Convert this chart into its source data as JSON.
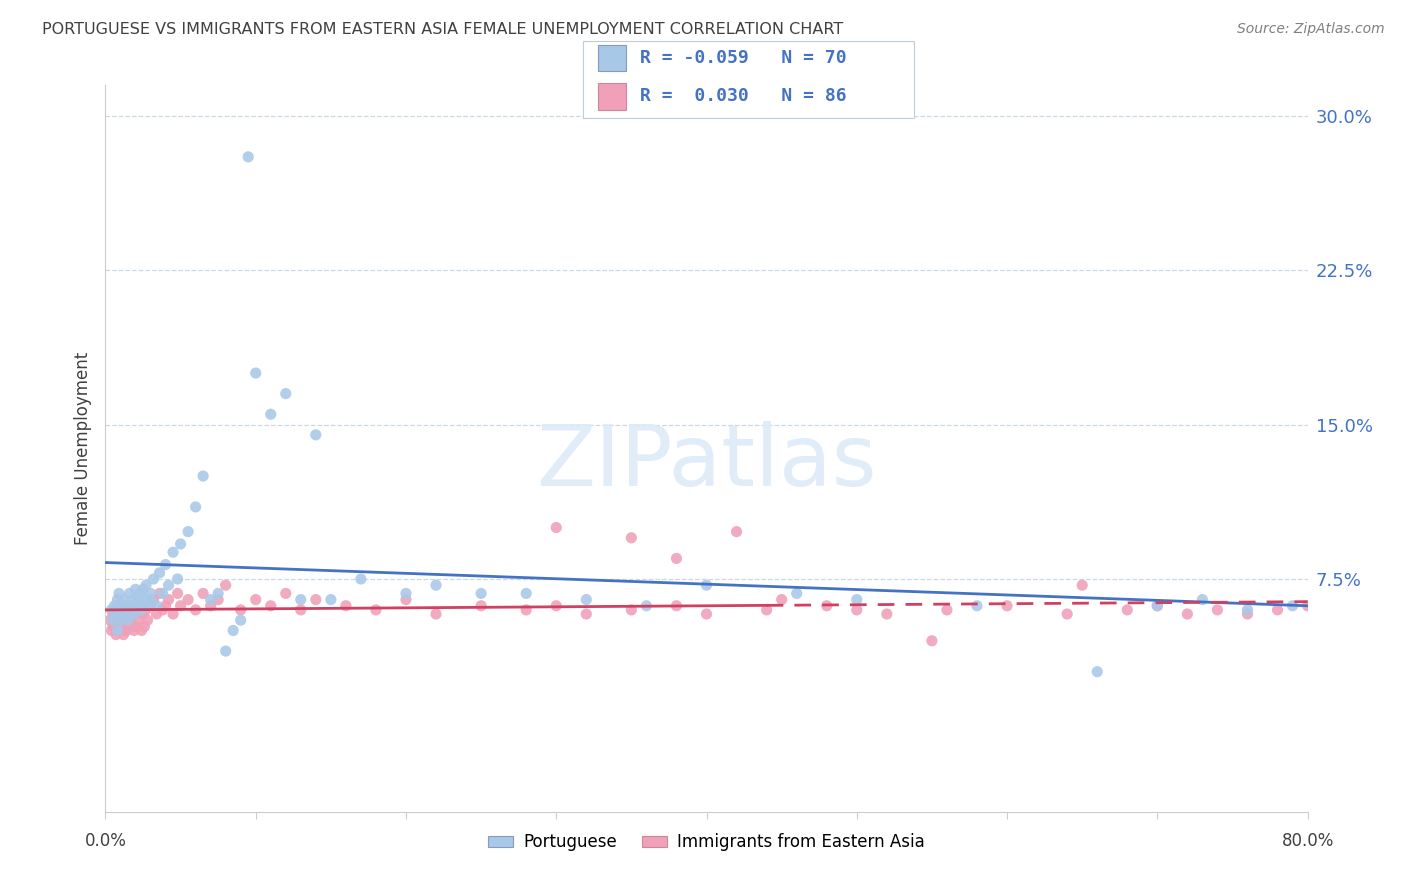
{
  "title": "PORTUGUESE VS IMMIGRANTS FROM EASTERN ASIA FEMALE UNEMPLOYMENT CORRELATION CHART",
  "source": "Source: ZipAtlas.com",
  "ylabel": "Female Unemployment",
  "ytick_labels": [
    "7.5%",
    "15.0%",
    "22.5%",
    "30.0%"
  ],
  "ytick_values": [
    0.075,
    0.15,
    0.225,
    0.3
  ],
  "xmin": 0.0,
  "xmax": 0.8,
  "ymin": -0.038,
  "ymax": 0.315,
  "blue_color": "#a8c8e8",
  "pink_color": "#f0a0b8",
  "blue_line_color": "#4472c4",
  "pink_line_color": "#d04060",
  "watermark_text": "ZIPatlas",
  "blue_R": -0.059,
  "blue_N": 70,
  "pink_R": 0.03,
  "pink_N": 86,
  "legend_label1": "Portuguese",
  "legend_label2": "Immigrants from Eastern Asia",
  "grid_color": "#c8d8e8",
  "tick_color": "#4472c4",
  "title_color": "#404040",
  "source_color": "#808080",
  "background_color": "#ffffff",
  "blue_x": [
    0.004,
    0.005,
    0.006,
    0.007,
    0.008,
    0.008,
    0.009,
    0.01,
    0.01,
    0.011,
    0.012,
    0.013,
    0.014,
    0.015,
    0.016,
    0.017,
    0.018,
    0.019,
    0.02,
    0.02,
    0.021,
    0.022,
    0.023,
    0.024,
    0.025,
    0.026,
    0.027,
    0.028,
    0.03,
    0.03,
    0.032,
    0.034,
    0.036,
    0.038,
    0.04,
    0.042,
    0.045,
    0.048,
    0.05,
    0.055,
    0.06,
    0.065,
    0.07,
    0.075,
    0.08,
    0.085,
    0.09,
    0.095,
    0.1,
    0.11,
    0.12,
    0.13,
    0.14,
    0.15,
    0.17,
    0.2,
    0.22,
    0.25,
    0.28,
    0.32,
    0.36,
    0.4,
    0.46,
    0.5,
    0.58,
    0.66,
    0.7,
    0.73,
    0.76,
    0.79
  ],
  "blue_y": [
    0.06,
    0.055,
    0.062,
    0.058,
    0.065,
    0.05,
    0.068,
    0.06,
    0.055,
    0.062,
    0.065,
    0.058,
    0.06,
    0.055,
    0.068,
    0.062,
    0.065,
    0.058,
    0.07,
    0.06,
    0.062,
    0.065,
    0.068,
    0.06,
    0.07,
    0.065,
    0.072,
    0.062,
    0.068,
    0.065,
    0.075,
    0.062,
    0.078,
    0.068,
    0.082,
    0.072,
    0.088,
    0.075,
    0.092,
    0.098,
    0.11,
    0.125,
    0.065,
    0.068,
    0.04,
    0.05,
    0.055,
    0.28,
    0.175,
    0.155,
    0.165,
    0.065,
    0.145,
    0.065,
    0.075,
    0.068,
    0.072,
    0.068,
    0.068,
    0.065,
    0.062,
    0.072,
    0.068,
    0.065,
    0.062,
    0.03,
    0.062,
    0.065,
    0.06,
    0.062
  ],
  "pink_x": [
    0.003,
    0.004,
    0.005,
    0.005,
    0.006,
    0.007,
    0.007,
    0.008,
    0.009,
    0.01,
    0.01,
    0.011,
    0.012,
    0.012,
    0.013,
    0.014,
    0.015,
    0.015,
    0.016,
    0.017,
    0.018,
    0.019,
    0.02,
    0.02,
    0.021,
    0.022,
    0.023,
    0.024,
    0.025,
    0.026,
    0.027,
    0.028,
    0.03,
    0.032,
    0.034,
    0.036,
    0.038,
    0.04,
    0.042,
    0.045,
    0.048,
    0.05,
    0.055,
    0.06,
    0.065,
    0.07,
    0.075,
    0.08,
    0.09,
    0.1,
    0.11,
    0.12,
    0.13,
    0.14,
    0.16,
    0.18,
    0.2,
    0.22,
    0.25,
    0.28,
    0.3,
    0.32,
    0.35,
    0.38,
    0.4,
    0.44,
    0.48,
    0.52,
    0.56,
    0.6,
    0.64,
    0.68,
    0.7,
    0.72,
    0.74,
    0.76,
    0.78,
    0.8,
    0.42,
    0.5,
    0.3,
    0.35,
    0.38,
    0.45,
    0.55,
    0.65
  ],
  "pink_y": [
    0.055,
    0.05,
    0.058,
    0.052,
    0.06,
    0.055,
    0.048,
    0.062,
    0.055,
    0.058,
    0.052,
    0.06,
    0.048,
    0.055,
    0.062,
    0.05,
    0.058,
    0.052,
    0.06,
    0.055,
    0.062,
    0.05,
    0.058,
    0.052,
    0.06,
    0.055,
    0.062,
    0.05,
    0.058,
    0.052,
    0.06,
    0.055,
    0.062,
    0.065,
    0.058,
    0.068,
    0.06,
    0.062,
    0.065,
    0.058,
    0.068,
    0.062,
    0.065,
    0.06,
    0.068,
    0.062,
    0.065,
    0.072,
    0.06,
    0.065,
    0.062,
    0.068,
    0.06,
    0.065,
    0.062,
    0.06,
    0.065,
    0.058,
    0.062,
    0.06,
    0.062,
    0.058,
    0.06,
    0.062,
    0.058,
    0.06,
    0.062,
    0.058,
    0.06,
    0.062,
    0.058,
    0.06,
    0.062,
    0.058,
    0.06,
    0.058,
    0.06,
    0.062,
    0.098,
    0.06,
    0.1,
    0.095,
    0.085,
    0.065,
    0.045,
    0.072
  ]
}
